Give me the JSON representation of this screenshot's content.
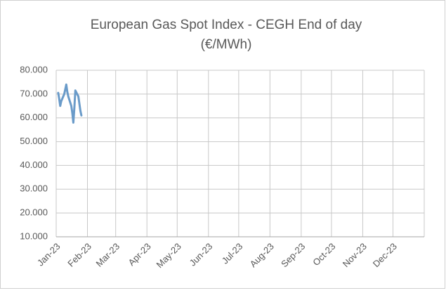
{
  "chart_data": {
    "type": "line",
    "title": [
      "European Gas Spot Index - CEGH End of day",
      "(€/MWh)"
    ],
    "x": [
      "2023-01-03",
      "2023-01-04",
      "2023-01-05",
      "2023-01-06",
      "2023-01-09",
      "2023-01-10",
      "2023-01-11",
      "2023-01-12",
      "2023-01-13",
      "2023-01-16",
      "2023-01-17",
      "2023-01-18",
      "2023-01-19",
      "2023-01-20",
      "2023-01-23",
      "2023-01-24",
      "2023-01-25",
      "2023-01-26"
    ],
    "series": [
      {
        "name": "CEGH",
        "color": "#6a9bc9",
        "values": [
          70.5,
          68,
          65,
          67,
          70,
          72,
          74,
          71,
          69,
          65,
          62,
          58,
          64,
          71.5,
          69,
          66,
          63,
          61
        ]
      }
    ],
    "xlim": [
      "2023-01-01",
      "2024-01-01"
    ],
    "xticks": [
      {
        "value": "2023-01-01",
        "label": "Jan-23"
      },
      {
        "value": "2023-02-01",
        "label": "Feb-23"
      },
      {
        "value": "2023-03-01",
        "label": "Mar-23"
      },
      {
        "value": "2023-04-01",
        "label": "Apr-23"
      },
      {
        "value": "2023-05-01",
        "label": "May-23"
      },
      {
        "value": "2023-06-01",
        "label": "Jun-23"
      },
      {
        "value": "2023-07-01",
        "label": "Jul-23"
      },
      {
        "value": "2023-08-01",
        "label": "Aug-23"
      },
      {
        "value": "2023-09-01",
        "label": "Sep-23"
      },
      {
        "value": "2023-10-01",
        "label": "Oct-23"
      },
      {
        "value": "2023-11-01",
        "label": "Nov-23"
      },
      {
        "value": "2023-12-01",
        "label": "Dec-23"
      }
    ],
    "ylim": [
      10,
      80
    ],
    "yticks": [
      {
        "value": 10,
        "label": "10.000"
      },
      {
        "value": 20,
        "label": "20.000"
      },
      {
        "value": 30,
        "label": "30.000"
      },
      {
        "value": 40,
        "label": "40.000"
      },
      {
        "value": 50,
        "label": "50.000"
      },
      {
        "value": 60,
        "label": "60.000"
      },
      {
        "value": 70,
        "label": "70.000"
      },
      {
        "value": 80,
        "label": "80.000"
      }
    ],
    "grid": true
  }
}
